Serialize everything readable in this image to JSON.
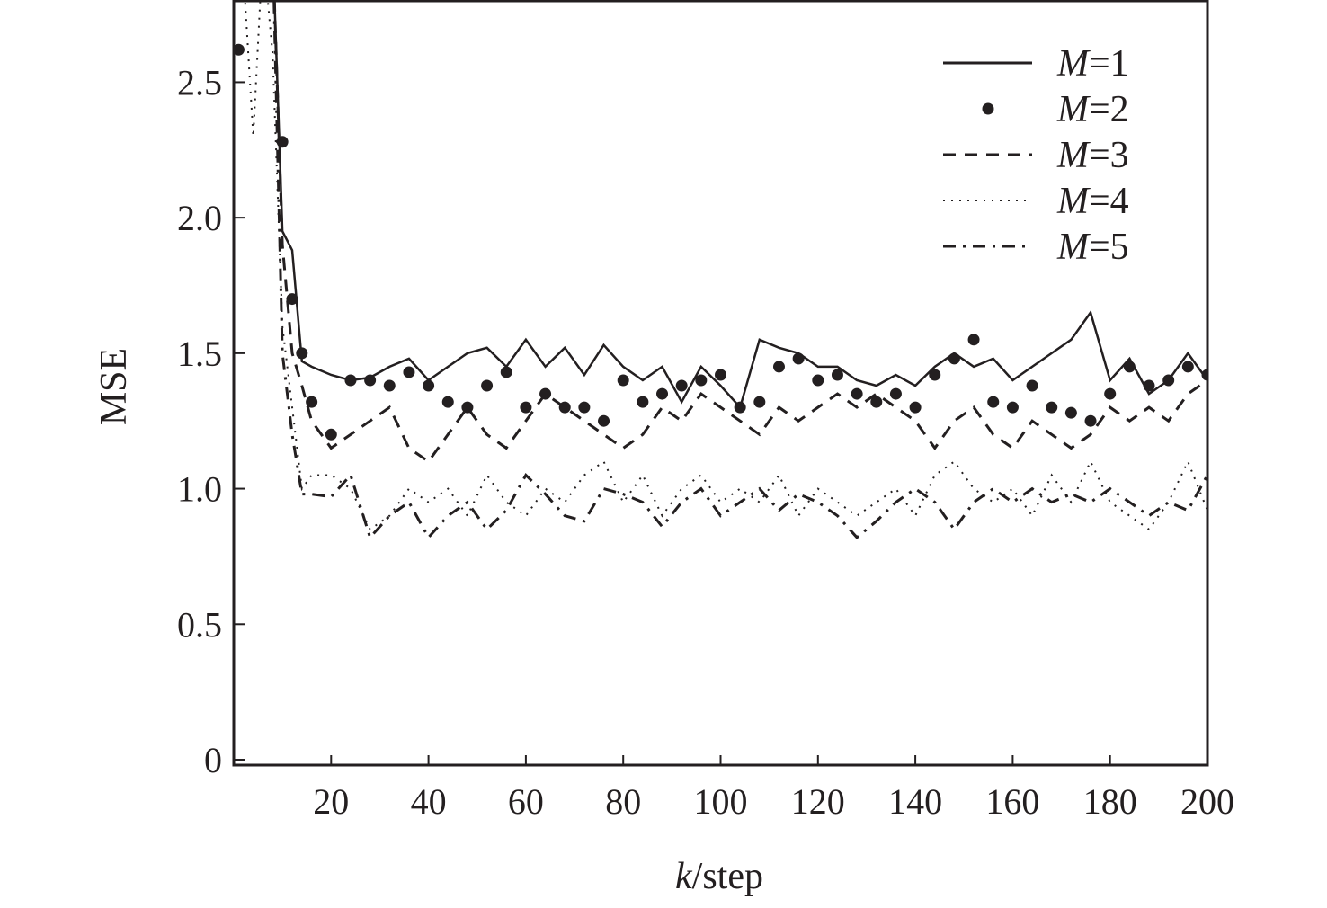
{
  "chart_data": {
    "type": "line",
    "title": "",
    "xlabel_italic": "k",
    "xlabel_rest": "/step",
    "ylabel": "MSE",
    "xlim": [
      0,
      200
    ],
    "ylim": [
      0,
      2.8
    ],
    "xticks": [
      20,
      40,
      60,
      80,
      100,
      120,
      140,
      160,
      180,
      200
    ],
    "yticks": [
      0,
      0.5,
      1.0,
      1.5,
      2.0,
      2.5
    ],
    "ytick_labels": [
      "0",
      "0.5",
      "1.0",
      "1.5",
      "2.0",
      "2.5"
    ],
    "grid": false,
    "legend_position": "top-right",
    "x": [
      1,
      2,
      4,
      6,
      8,
      10,
      12,
      14,
      16,
      20,
      24,
      28,
      32,
      36,
      40,
      44,
      48,
      52,
      56,
      60,
      64,
      68,
      72,
      76,
      80,
      84,
      88,
      92,
      96,
      100,
      104,
      108,
      112,
      116,
      120,
      124,
      128,
      132,
      136,
      140,
      144,
      148,
      152,
      156,
      160,
      164,
      168,
      172,
      176,
      180,
      184,
      188,
      192,
      196,
      200
    ],
    "series": [
      {
        "name_italic": "M",
        "name_rest": "=1",
        "style": "solid",
        "values": [
          3.0,
          3.0,
          3.0,
          3.0,
          3.0,
          1.95,
          1.88,
          1.47,
          1.45,
          1.42,
          1.4,
          1.41,
          1.45,
          1.48,
          1.4,
          1.45,
          1.5,
          1.52,
          1.45,
          1.55,
          1.45,
          1.52,
          1.42,
          1.53,
          1.45,
          1.4,
          1.45,
          1.32,
          1.45,
          1.38,
          1.3,
          1.55,
          1.52,
          1.5,
          1.45,
          1.45,
          1.4,
          1.38,
          1.42,
          1.38,
          1.45,
          1.5,
          1.45,
          1.48,
          1.4,
          1.45,
          1.5,
          1.55,
          1.65,
          1.4,
          1.48,
          1.35,
          1.4,
          1.5,
          1.4
        ]
      },
      {
        "name_italic": "M",
        "name_rest": "=2",
        "style": "dots",
        "values": [
          2.62,
          3.0,
          3.0,
          3.0,
          3.0,
          2.28,
          1.7,
          1.5,
          1.32,
          1.2,
          1.4,
          1.4,
          1.38,
          1.43,
          1.38,
          1.32,
          1.3,
          1.38,
          1.43,
          1.3,
          1.35,
          1.3,
          1.3,
          1.25,
          1.4,
          1.32,
          1.35,
          1.38,
          1.4,
          1.42,
          1.3,
          1.32,
          1.45,
          1.48,
          1.4,
          1.42,
          1.35,
          1.32,
          1.35,
          1.3,
          1.42,
          1.48,
          1.55,
          1.32,
          1.3,
          1.38,
          1.3,
          1.28,
          1.25,
          1.35,
          1.45,
          1.38,
          1.4,
          1.45,
          1.42
        ]
      },
      {
        "name_italic": "M",
        "name_rest": "=3",
        "style": "dashed",
        "values": [
          3.0,
          3.0,
          3.0,
          3.0,
          3.0,
          1.9,
          1.5,
          1.38,
          1.25,
          1.15,
          1.2,
          1.25,
          1.3,
          1.15,
          1.1,
          1.2,
          1.3,
          1.2,
          1.15,
          1.25,
          1.35,
          1.3,
          1.25,
          1.2,
          1.15,
          1.2,
          1.3,
          1.25,
          1.35,
          1.3,
          1.25,
          1.2,
          1.3,
          1.25,
          1.3,
          1.35,
          1.3,
          1.35,
          1.3,
          1.25,
          1.15,
          1.25,
          1.3,
          1.2,
          1.15,
          1.25,
          1.2,
          1.15,
          1.2,
          1.3,
          1.25,
          1.3,
          1.25,
          1.35,
          1.4
        ]
      },
      {
        "name_italic": "M",
        "name_rest": "=4",
        "style": "dotted",
        "values": [
          3.0,
          2.9,
          2.3,
          3.0,
          2.6,
          1.6,
          1.3,
          1.0,
          1.05,
          1.05,
          1.0,
          0.85,
          0.9,
          1.0,
          0.95,
          1.0,
          0.9,
          1.05,
          0.95,
          0.9,
          1.0,
          0.95,
          1.05,
          1.1,
          0.95,
          1.05,
          0.9,
          1.0,
          1.05,
          0.95,
          1.0,
          0.95,
          1.05,
          0.9,
          1.0,
          0.95,
          0.9,
          0.95,
          1.0,
          0.9,
          1.05,
          1.1,
          1.0,
          0.95,
          1.0,
          0.9,
          1.05,
          0.95,
          1.1,
          0.95,
          0.9,
          0.85,
          0.95,
          1.1,
          0.92
        ]
      },
      {
        "name_italic": "M",
        "name_rest": "=5",
        "style": "dashdot",
        "values": [
          3.0,
          3.0,
          3.0,
          3.0,
          3.0,
          1.5,
          1.2,
          0.98,
          0.98,
          0.97,
          1.05,
          0.82,
          0.9,
          0.95,
          0.82,
          0.9,
          0.95,
          0.85,
          0.92,
          1.05,
          0.98,
          0.9,
          0.88,
          1.0,
          0.98,
          0.95,
          0.86,
          0.95,
          1.0,
          0.9,
          0.95,
          1.0,
          0.92,
          0.98,
          0.95,
          0.9,
          0.82,
          0.88,
          0.95,
          1.0,
          0.95,
          0.85,
          0.95,
          1.0,
          0.95,
          1.0,
          0.95,
          0.98,
          0.95,
          1.0,
          0.95,
          0.9,
          0.95,
          0.92,
          1.05
        ]
      }
    ]
  }
}
